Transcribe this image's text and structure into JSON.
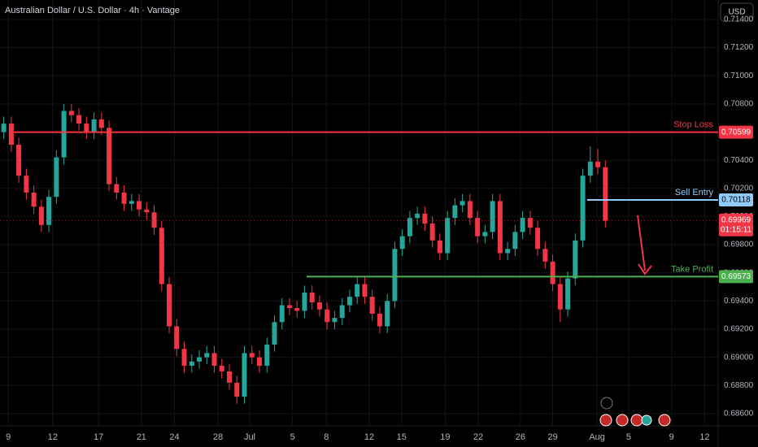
{
  "chart_data": {
    "type": "candlestick",
    "title": "Australian Dollar / U.S. Dollar · 4h · Vantage",
    "currency": "USD",
    "up_color": "#26a69a",
    "down_color": "#f23645",
    "grid": true,
    "xlim": [
      0,
      95.5
    ],
    "xticks": [
      {
        "value": 1.1,
        "label": "9"
      },
      {
        "value": 7.0,
        "label": "12"
      },
      {
        "value": 13.1,
        "label": "17"
      },
      {
        "value": 18.8,
        "label": "21"
      },
      {
        "value": 23.2,
        "label": "24"
      },
      {
        "value": 29.0,
        "label": "28"
      },
      {
        "value": 33.2,
        "label": "Jul"
      },
      {
        "value": 38.9,
        "label": "5"
      },
      {
        "value": 43.4,
        "label": "8"
      },
      {
        "value": 49.1,
        "label": "12"
      },
      {
        "value": 53.4,
        "label": "15"
      },
      {
        "value": 59.2,
        "label": "19"
      },
      {
        "value": 63.6,
        "label": "22"
      },
      {
        "value": 69.2,
        "label": "26"
      },
      {
        "value": 73.5,
        "label": "29"
      },
      {
        "value": 79.4,
        "label": "Aug"
      },
      {
        "value": 83.6,
        "label": "5"
      },
      {
        "value": 89.3,
        "label": "9"
      },
      {
        "value": 93.7,
        "label": "12"
      }
    ],
    "ylim": [
      0.68513,
      0.71538
    ],
    "yticks": [
      {
        "value": 0.686,
        "label": "0.68600"
      },
      {
        "value": 0.688,
        "label": "0.68800"
      },
      {
        "value": 0.69,
        "label": "0.69000"
      },
      {
        "value": 0.692,
        "label": "0.69200"
      },
      {
        "value": 0.694,
        "label": "0.69400"
      },
      {
        "value": 0.696,
        "label": "0.69600"
      },
      {
        "value": 0.698,
        "label": "0.69800"
      },
      {
        "value": 0.7,
        "label": "0.70000"
      },
      {
        "value": 0.702,
        "label": "0.70200"
      },
      {
        "value": 0.704,
        "label": "0.70400"
      },
      {
        "value": 0.706,
        "label": "0.70600"
      },
      {
        "value": 0.708,
        "label": "0.70800"
      },
      {
        "value": 0.71,
        "label": "0.71000"
      },
      {
        "value": 0.712,
        "label": "0.71200"
      },
      {
        "value": 0.714,
        "label": "0.71400"
      }
    ],
    "open": [
      0.706,
      0.7066,
      0.7051,
      0.7029,
      0.7017,
      0.7007,
      0.6994,
      0.7014,
      0.7042,
      0.7075,
      0.7072,
      0.7066,
      0.706,
      0.7069,
      0.7063,
      0.7023,
      0.7017,
      0.7009,
      0.7011,
      0.7005,
      0.7003,
      0.6992,
      0.6952,
      0.6922,
      0.6906,
      0.6894,
      0.6897,
      0.69,
      0.6903,
      0.6894,
      0.689,
      0.6882,
      0.6872,
      0.6903,
      0.69,
      0.6894,
      0.6909,
      0.6925,
      0.6937,
      0.6935,
      0.6933,
      0.6946,
      0.6939,
      0.6934,
      0.6925,
      0.6928,
      0.6937,
      0.6943,
      0.6952,
      0.6943,
      0.6931,
      0.6922,
      0.694,
      0.6977,
      0.6986,
      0.6999,
      0.7002,
      0.6995,
      0.6983,
      0.6974,
      0.6999,
      0.7008,
      0.7011,
      0.6999,
      0.6986,
      0.6989,
      0.7011,
      0.6974,
      0.6977,
      0.6989,
      0.6999,
      0.6992,
      0.6977,
      0.6968,
      0.6952,
      0.6934,
      0.6956,
      0.6983,
      0.7029,
      0.7039,
      0.7035
    ],
    "high": [
      0.7071,
      0.7071,
      0.7056,
      0.7034,
      0.7022,
      0.7012,
      0.7019,
      0.7047,
      0.708,
      0.708,
      0.7077,
      0.7071,
      0.7074,
      0.7074,
      0.7068,
      0.7028,
      0.7022,
      0.7016,
      0.7016,
      0.701,
      0.7008,
      0.6997,
      0.6957,
      0.6927,
      0.6911,
      0.6902,
      0.6905,
      0.6908,
      0.6908,
      0.6899,
      0.6895,
      0.6887,
      0.6908,
      0.6908,
      0.6905,
      0.6914,
      0.693,
      0.6942,
      0.6942,
      0.694,
      0.6951,
      0.6951,
      0.6944,
      0.6939,
      0.6933,
      0.6942,
      0.6948,
      0.6957,
      0.6957,
      0.6948,
      0.6936,
      0.6945,
      0.6982,
      0.6991,
      0.7004,
      0.7007,
      0.7007,
      0.7,
      0.6988,
      0.7004,
      0.7013,
      0.7016,
      0.7016,
      0.7004,
      0.6994,
      0.7016,
      0.7016,
      0.6982,
      0.6994,
      0.7004,
      0.7004,
      0.6997,
      0.6982,
      0.6973,
      0.6957,
      0.6961,
      0.6988,
      0.7034,
      0.705,
      0.7048,
      0.704
    ],
    "low": [
      0.7055,
      0.7046,
      0.7024,
      0.7012,
      0.7002,
      0.6989,
      0.6989,
      0.7009,
      0.7037,
      0.7067,
      0.7061,
      0.7055,
      0.7055,
      0.7058,
      0.7018,
      0.7012,
      0.7004,
      0.7004,
      0.7,
      0.6998,
      0.6987,
      0.6947,
      0.6917,
      0.6901,
      0.6889,
      0.6889,
      0.6892,
      0.6895,
      0.6889,
      0.6885,
      0.6877,
      0.6867,
      0.6867,
      0.6895,
      0.6889,
      0.6889,
      0.6904,
      0.692,
      0.693,
      0.6928,
      0.6928,
      0.6934,
      0.6929,
      0.692,
      0.692,
      0.6923,
      0.6932,
      0.6938,
      0.6938,
      0.6926,
      0.6917,
      0.6917,
      0.6935,
      0.6972,
      0.6981,
      0.6994,
      0.699,
      0.6978,
      0.6969,
      0.6969,
      0.6994,
      0.7003,
      0.6994,
      0.6981,
      0.6981,
      0.6984,
      0.6969,
      0.6969,
      0.6972,
      0.6984,
      0.6987,
      0.6972,
      0.6963,
      0.6947,
      0.6925,
      0.6929,
      0.6951,
      0.6978,
      0.7024,
      0.703,
      0.6992
    ],
    "close": [
      0.7066,
      0.7051,
      0.7029,
      0.7017,
      0.7007,
      0.6994,
      0.7014,
      0.7042,
      0.7075,
      0.7072,
      0.7066,
      0.706,
      0.7069,
      0.7063,
      0.7023,
      0.7017,
      0.7009,
      0.7011,
      0.7005,
      0.7003,
      0.6992,
      0.6952,
      0.6922,
      0.6906,
      0.6894,
      0.6897,
      0.69,
      0.6903,
      0.6894,
      0.689,
      0.6882,
      0.6872,
      0.6903,
      0.69,
      0.6894,
      0.6909,
      0.6925,
      0.6937,
      0.6935,
      0.6933,
      0.6946,
      0.6939,
      0.6934,
      0.6925,
      0.6928,
      0.6937,
      0.6943,
      0.6952,
      0.6943,
      0.6931,
      0.6922,
      0.694,
      0.6977,
      0.6986,
      0.6999,
      0.7002,
      0.6995,
      0.6983,
      0.6974,
      0.6999,
      0.7008,
      0.7011,
      0.6999,
      0.6986,
      0.6989,
      0.7011,
      0.6974,
      0.6977,
      0.6989,
      0.6999,
      0.6992,
      0.6977,
      0.6968,
      0.6952,
      0.6934,
      0.6956,
      0.6983,
      0.7029,
      0.7039,
      0.7035,
      0.6997
    ],
    "price_lines": [
      {
        "label": "Stop Loss",
        "value": 0.70599,
        "color": "#f23645"
      },
      {
        "label": "Sell Entry",
        "value": 0.70118,
        "color": "#90caf9"
      },
      {
        "label": "Take Profit",
        "value": 0.69573,
        "color": "#4caf50"
      }
    ],
    "last_price": {
      "value": 0.69969,
      "countdown": "01:15:11",
      "color": "#f23645"
    }
  }
}
